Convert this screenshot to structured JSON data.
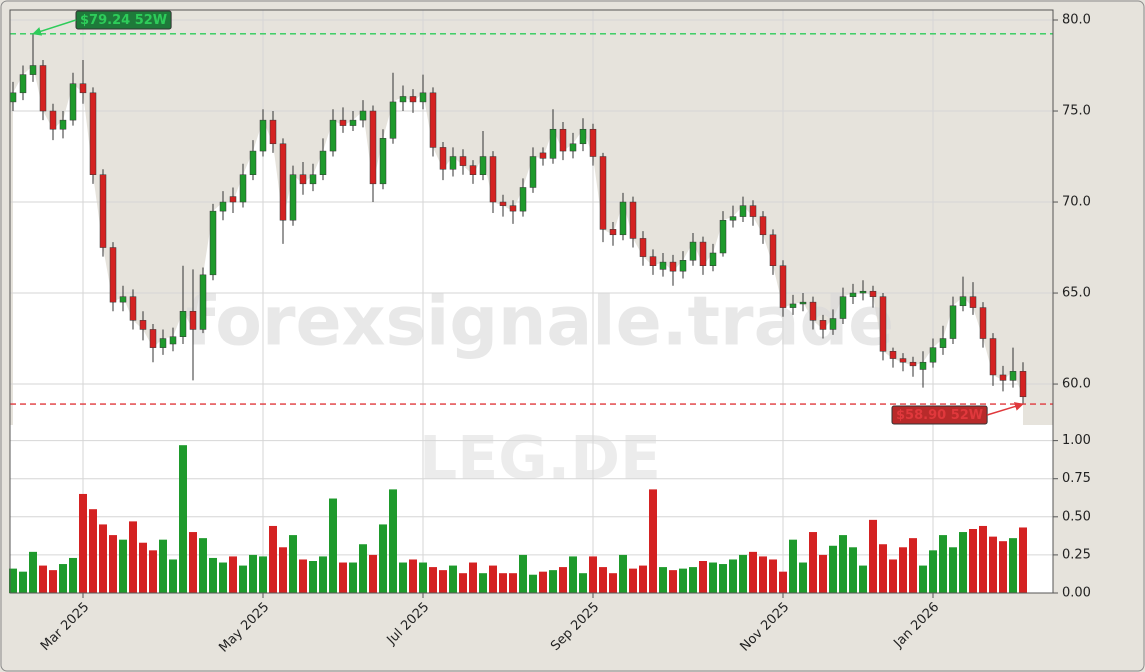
{
  "chart_data": [
    {
      "type": "candlestick",
      "categories": [
        null,
        null,
        null,
        null,
        null,
        null,
        null,
        "Mar 2025",
        null,
        null,
        null,
        null,
        null,
        null,
        null,
        null,
        null,
        null,
        null,
        null,
        null,
        null,
        null,
        null,
        null,
        "May 2025",
        null,
        null,
        null,
        null,
        null,
        null,
        null,
        null,
        null,
        null,
        null,
        null,
        null,
        null,
        null,
        "Jul 2025",
        null,
        null,
        null,
        null,
        null,
        null,
        null,
        null,
        null,
        null,
        null,
        null,
        null,
        null,
        null,
        null,
        "Sep 2025",
        null,
        null,
        null,
        null,
        null,
        null,
        null,
        null,
        null,
        null,
        null,
        null,
        null,
        null,
        null,
        null,
        null,
        null,
        "Nov 2025",
        null,
        null,
        null,
        null,
        null,
        null,
        null,
        null,
        null,
        null,
        null,
        null,
        null,
        null,
        "Jan 2026",
        null,
        null,
        null,
        null,
        null,
        null,
        null,
        null,
        null
      ],
      "open": [
        75.5,
        76,
        77,
        77.5,
        75,
        74,
        74.5,
        76.5,
        76,
        71.5,
        67.5,
        64.5,
        64.8,
        63.5,
        63,
        62,
        62.2,
        62.6,
        64,
        63,
        66,
        69.5,
        70.3,
        70,
        71.5,
        72.8,
        74.5,
        73.2,
        69,
        71.5,
        71,
        71.5,
        72.8,
        74.5,
        74.2,
        74.5,
        75,
        71,
        73.5,
        75.5,
        75.8,
        75.5,
        76,
        73,
        71.8,
        72.5,
        72,
        71.5,
        72.5,
        70,
        69.8,
        69.5,
        70.8,
        72.7,
        72.4,
        74,
        72.8,
        73.2,
        74,
        72.5,
        68.5,
        68.2,
        70,
        68,
        67,
        66.3,
        66.7,
        66.2,
        66.8,
        67.8,
        66.5,
        67.2,
        69,
        69.2,
        69.8,
        69.2,
        68.2,
        66.5,
        64.2,
        64.4,
        64.5,
        63.5,
        63,
        63.6,
        64.8,
        65,
        65.1,
        64.8,
        61.8,
        61.4,
        61.2,
        60.8,
        61.2,
        62,
        62.5,
        64.3,
        64.8,
        64.2,
        62.5,
        60.5,
        60.2,
        60.7
      ],
      "high": [
        76.6,
        77.5,
        79.24,
        77.8,
        75.4,
        75,
        77.1,
        77.8,
        76.3,
        71.8,
        67.8,
        65.4,
        65.2,
        64,
        63.3,
        63,
        63.1,
        66.5,
        66.3,
        66.4,
        69.9,
        70.6,
        70.8,
        72.1,
        73.4,
        75.1,
        75,
        73.5,
        72,
        72.2,
        72.1,
        73.5,
        75.1,
        75.2,
        75,
        75.6,
        75.3,
        74,
        77.1,
        76.4,
        76.2,
        77,
        76.3,
        73.3,
        73,
        72.9,
        72.3,
        73.9,
        72.8,
        70.4,
        70.1,
        71.3,
        73,
        73,
        75.1,
        74.4,
        73.8,
        74.6,
        74.3,
        72.7,
        68.9,
        70.5,
        70.3,
        68.4,
        67.4,
        67.2,
        67.1,
        67.3,
        68.3,
        68.1,
        67.7,
        69.5,
        69.8,
        70.3,
        70.1,
        69.5,
        68.5,
        66.8,
        64.9,
        65,
        64.8,
        63.8,
        64.1,
        65.3,
        65.5,
        65.7,
        65.4,
        65,
        62,
        61.7,
        61.5,
        61.8,
        62.5,
        63.2,
        64.8,
        65.9,
        65.6,
        64.5,
        62.8,
        61,
        62,
        61.2
      ],
      "low": [
        75,
        75.6,
        76.6,
        74.5,
        73.4,
        73.5,
        74.2,
        75.4,
        71,
        67,
        64,
        64,
        63,
        62.4,
        61.2,
        61.6,
        61.8,
        62.2,
        60.2,
        62.8,
        65.7,
        69,
        69.4,
        69.7,
        71.2,
        72.5,
        72.7,
        67.7,
        68.7,
        70.4,
        70.6,
        71.2,
        72.5,
        73.8,
        73.9,
        74.1,
        70,
        70.7,
        73.2,
        75,
        74.9,
        75.1,
        72.5,
        71.2,
        71.4,
        71.5,
        71,
        71.2,
        69.4,
        69.2,
        68.8,
        69.2,
        70.5,
        72,
        72.1,
        72.3,
        72.4,
        72.8,
        72,
        67.8,
        67.6,
        67.9,
        67.5,
        66.5,
        66,
        65.9,
        65.4,
        65.8,
        66.5,
        66,
        66.2,
        67,
        68.6,
        68.9,
        68.7,
        67.7,
        66,
        63.7,
        63.8,
        64,
        63,
        62.5,
        62.7,
        63.3,
        64.4,
        64.6,
        64.2,
        61.3,
        60.9,
        60.7,
        60.4,
        59.8,
        60.9,
        61.6,
        62.2,
        64,
        63.8,
        62,
        59.9,
        59.6,
        59.8,
        58.9
      ],
      "close": [
        76,
        77,
        77.5,
        75,
        74,
        74.5,
        76.5,
        76,
        71.5,
        67.5,
        64.5,
        64.8,
        63.5,
        63,
        62,
        62.5,
        62.6,
        64,
        63,
        66,
        69.5,
        70,
        70,
        71.5,
        72.8,
        74.5,
        73.2,
        69,
        71.5,
        71,
        71.5,
        72.8,
        74.5,
        74.2,
        74.5,
        75,
        71,
        73.5,
        75.5,
        75.8,
        75.5,
        76,
        73,
        71.8,
        72.5,
        72,
        71.5,
        72.5,
        70,
        69.8,
        69.5,
        70.8,
        72.5,
        72.4,
        74,
        72.8,
        73.2,
        74,
        72.5,
        68.5,
        68.2,
        70,
        68,
        67,
        66.5,
        66.7,
        66.2,
        66.8,
        67.8,
        66.5,
        67.2,
        69,
        69.2,
        69.8,
        69.2,
        68.2,
        66.5,
        64.2,
        64.4,
        64.5,
        63.5,
        63,
        63.6,
        64.8,
        65,
        65.1,
        64.8,
        61.8,
        61.4,
        61.2,
        61,
        61.2,
        62,
        62.5,
        64.3,
        64.8,
        64.2,
        62.5,
        60.5,
        60.2,
        60.7,
        59.3
      ],
      "up_color": "#1e9a2c",
      "down_color": "#d42222",
      "ylim": [
        57.75,
        80.55
      ],
      "yticks": [
        {
          "value": 60,
          "label": "60.0"
        },
        {
          "value": 65,
          "label": "65.0"
        },
        {
          "value": 70,
          "label": "70.0"
        },
        {
          "value": 75,
          "label": "75.0"
        },
        {
          "value": 80,
          "label": "80.0"
        }
      ],
      "grid": true,
      "hlines": [
        {
          "value": 79.24,
          "label": "$79.24 52W",
          "color": "#2ecc5a"
        },
        {
          "value": 58.9,
          "label": "$58.90 52W",
          "color": "#e0383c"
        }
      ],
      "watermark": "forexsignale.trade"
    },
    {
      "type": "bar",
      "values": [
        0.16,
        0.14,
        0.27,
        0.18,
        0.15,
        0.19,
        0.23,
        0.65,
        0.55,
        0.45,
        0.38,
        0.35,
        0.47,
        0.33,
        0.28,
        0.35,
        0.22,
        0.97,
        0.4,
        0.36,
        0.23,
        0.2,
        0.24,
        0.18,
        0.25,
        0.24,
        0.44,
        0.3,
        0.38,
        0.22,
        0.21,
        0.24,
        0.62,
        0.2,
        0.2,
        0.32,
        0.25,
        0.45,
        0.68,
        0.2,
        0.22,
        0.2,
        0.17,
        0.15,
        0.18,
        0.13,
        0.2,
        0.13,
        0.18,
        0.13,
        0.13,
        0.25,
        0.12,
        0.14,
        0.15,
        0.17,
        0.24,
        0.13,
        0.24,
        0.17,
        0.13,
        0.25,
        0.16,
        0.18,
        0.68,
        0.17,
        0.15,
        0.16,
        0.17,
        0.21,
        0.2,
        0.19,
        0.22,
        0.25,
        0.27,
        0.24,
        0.22,
        0.14,
        0.35,
        0.2,
        0.4,
        0.25,
        0.31,
        0.38,
        0.3,
        0.18,
        0.48,
        0.32,
        0.22,
        0.3,
        0.36,
        0.18,
        0.28,
        0.38,
        0.3,
        0.4,
        0.42,
        0.44,
        0.37,
        0.34,
        0.36,
        0.43
      ],
      "ylim": [
        0,
        1.05
      ],
      "yticks": [
        {
          "value": 0,
          "label": "0.00"
        },
        {
          "value": 0.25,
          "label": "0.25"
        },
        {
          "value": 0.5,
          "label": "0.50"
        },
        {
          "value": 0.75,
          "label": "0.75"
        },
        {
          "value": 1,
          "label": "1.00"
        }
      ],
      "grid": true,
      "watermark": "LEG.DE"
    }
  ]
}
